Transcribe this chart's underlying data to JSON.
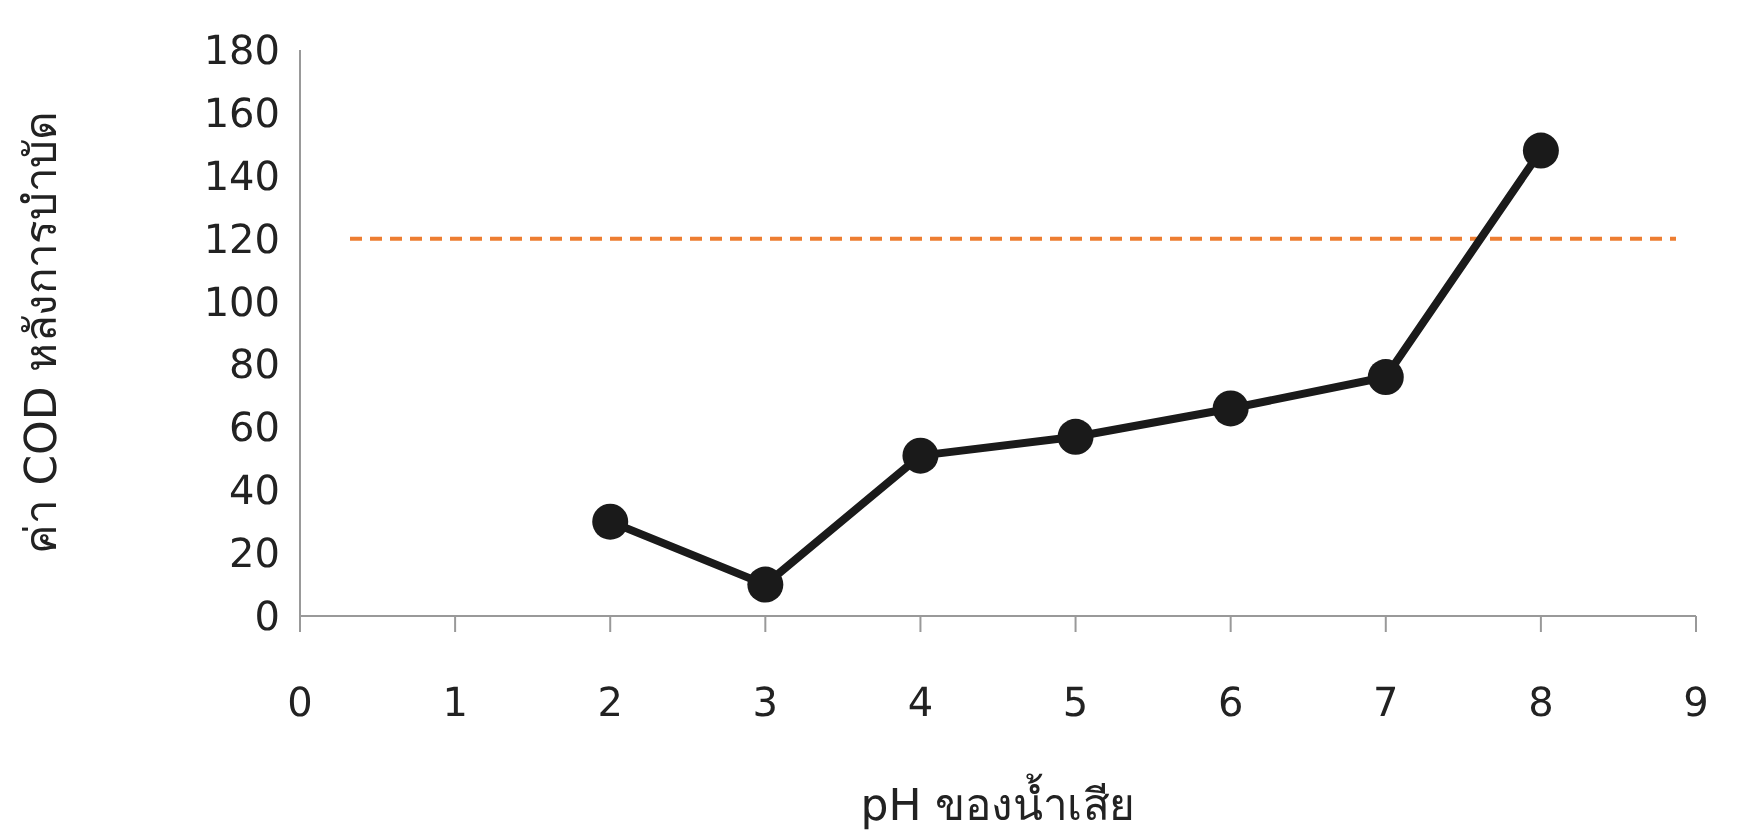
{
  "chart_data": {
    "type": "line",
    "xlabel": "pH ของน้ำเสีย",
    "ylabel": "ค่า COD หลังการบำบัด",
    "x": [
      2,
      3,
      4,
      5,
      6,
      7,
      8
    ],
    "series": [
      {
        "color": "#1a1a1a",
        "values": [
          30,
          10,
          51,
          57,
          66,
          76,
          148
        ]
      }
    ],
    "xlim": [
      0,
      9
    ],
    "xticks": [
      0,
      1,
      2,
      3,
      4,
      5,
      6,
      7,
      8,
      9
    ],
    "ylim": [
      0,
      180
    ],
    "yticks": [
      0,
      20,
      40,
      60,
      80,
      100,
      120,
      140,
      160,
      180
    ],
    "ref_lines": [
      {
        "axis": "y",
        "value": 120,
        "color": "#ed7d31",
        "line_style": "dashed"
      }
    ],
    "marker": "circle",
    "line_style": "solid",
    "grid": false
  }
}
